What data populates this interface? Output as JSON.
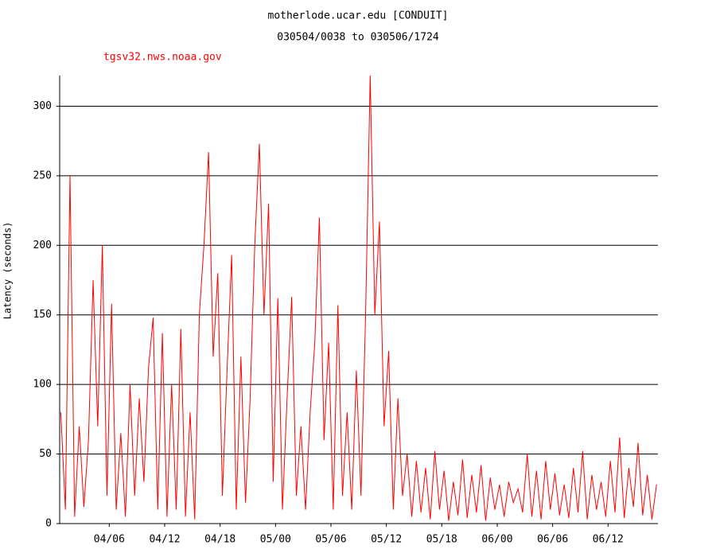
{
  "chart_data": {
    "type": "line",
    "title": "motherlode.ucar.edu [CONDUIT]",
    "subtitle": "030504/0038 to 030506/1724",
    "y_label": "Latency (seconds)",
    "x": [
      0.75,
      1.25,
      1.75,
      2.25,
      2.75,
      3.25,
      3.75,
      4.25,
      4.75,
      5.25,
      5.75,
      6.25,
      6.75,
      7.25,
      7.75,
      8.25,
      8.75,
      9.25,
      9.75,
      10.25,
      10.75,
      11.25,
      11.75,
      12.25,
      12.75,
      13.25,
      13.75,
      14.25,
      14.75,
      15.25,
      15.75,
      16.25,
      16.75,
      17.25,
      17.75,
      18.25,
      18.75,
      19.25,
      19.75,
      20.25,
      20.75,
      21.25,
      21.75,
      22.25,
      22.75,
      23.25,
      23.75,
      24.25,
      24.75,
      25.25,
      25.75,
      26.25,
      26.75,
      27.25,
      27.75,
      28.25,
      28.75,
      29.25,
      29.75,
      30.25,
      30.75,
      31.25,
      31.75,
      32.25,
      32.75,
      33.25,
      33.75,
      34.25,
      34.75,
      35.25,
      35.75,
      36.25,
      36.75,
      37.25,
      37.75,
      38.25,
      38.75,
      39.25,
      39.75,
      40.25,
      40.75,
      41.25,
      41.75,
      42.25,
      42.75,
      43.25,
      43.75,
      44.25,
      44.75,
      45.25,
      45.75,
      46.25,
      46.75,
      47.25,
      47.75,
      48.25,
      48.75,
      49.25,
      49.75,
      50.25,
      50.75,
      51.25,
      51.75,
      52.25,
      52.75,
      53.25,
      53.75,
      54.25,
      54.75,
      55.25,
      55.75,
      56.25,
      56.75,
      57.25,
      57.75,
      58.25,
      58.75,
      59.25,
      59.75,
      60.25,
      60.75,
      61.25,
      61.75,
      62.25,
      62.75,
      63.25,
      63.75,
      64.25,
      64.75,
      65.25
    ],
    "series": [
      {
        "name": "tgsv32.nws.noaa.gov",
        "color": "#ff0000",
        "values": [
          80,
          10,
          250,
          5,
          70,
          12,
          60,
          175,
          70,
          200,
          20,
          158,
          10,
          65,
          5,
          100,
          20,
          90,
          30,
          112,
          148,
          10,
          137,
          5,
          100,
          10,
          140,
          5,
          80,
          3,
          150,
          200,
          267,
          120,
          180,
          20,
          110,
          193,
          10,
          120,
          15,
          90,
          200,
          273,
          150,
          230,
          30,
          162,
          10,
          90,
          163,
          20,
          70,
          10,
          80,
          130,
          220,
          60,
          130,
          10,
          157,
          20,
          80,
          10,
          110,
          20,
          150,
          322,
          150,
          217,
          70,
          124,
          10,
          90,
          20,
          50,
          5,
          45,
          8,
          40,
          3,
          52,
          10,
          38,
          2,
          30,
          6,
          46,
          4,
          35,
          8,
          42,
          2,
          33,
          10,
          28,
          5,
          30,
          15,
          25,
          8,
          50,
          5,
          38,
          3,
          45,
          10,
          36,
          6,
          28,
          4,
          40,
          8,
          52,
          3,
          35,
          10,
          30,
          5,
          45,
          8,
          62,
          4,
          40,
          12,
          58,
          6,
          35,
          3,
          28
        ]
      }
    ],
    "xlim": [
      0.63,
      65.4
    ],
    "xticks": [
      {
        "value": 6,
        "label": "04/06"
      },
      {
        "value": 12,
        "label": "04/12"
      },
      {
        "value": 18,
        "label": "04/18"
      },
      {
        "value": 24,
        "label": "05/00"
      },
      {
        "value": 30,
        "label": "05/06"
      },
      {
        "value": 36,
        "label": "05/12"
      },
      {
        "value": 42,
        "label": "05/18"
      },
      {
        "value": 48,
        "label": "06/00"
      },
      {
        "value": 54,
        "label": "06/06"
      },
      {
        "value": 60,
        "label": "06/12"
      }
    ],
    "ylim": [
      0,
      322
    ],
    "yticks": [
      0,
      50,
      100,
      150,
      200,
      250,
      300
    ],
    "grid": true
  }
}
